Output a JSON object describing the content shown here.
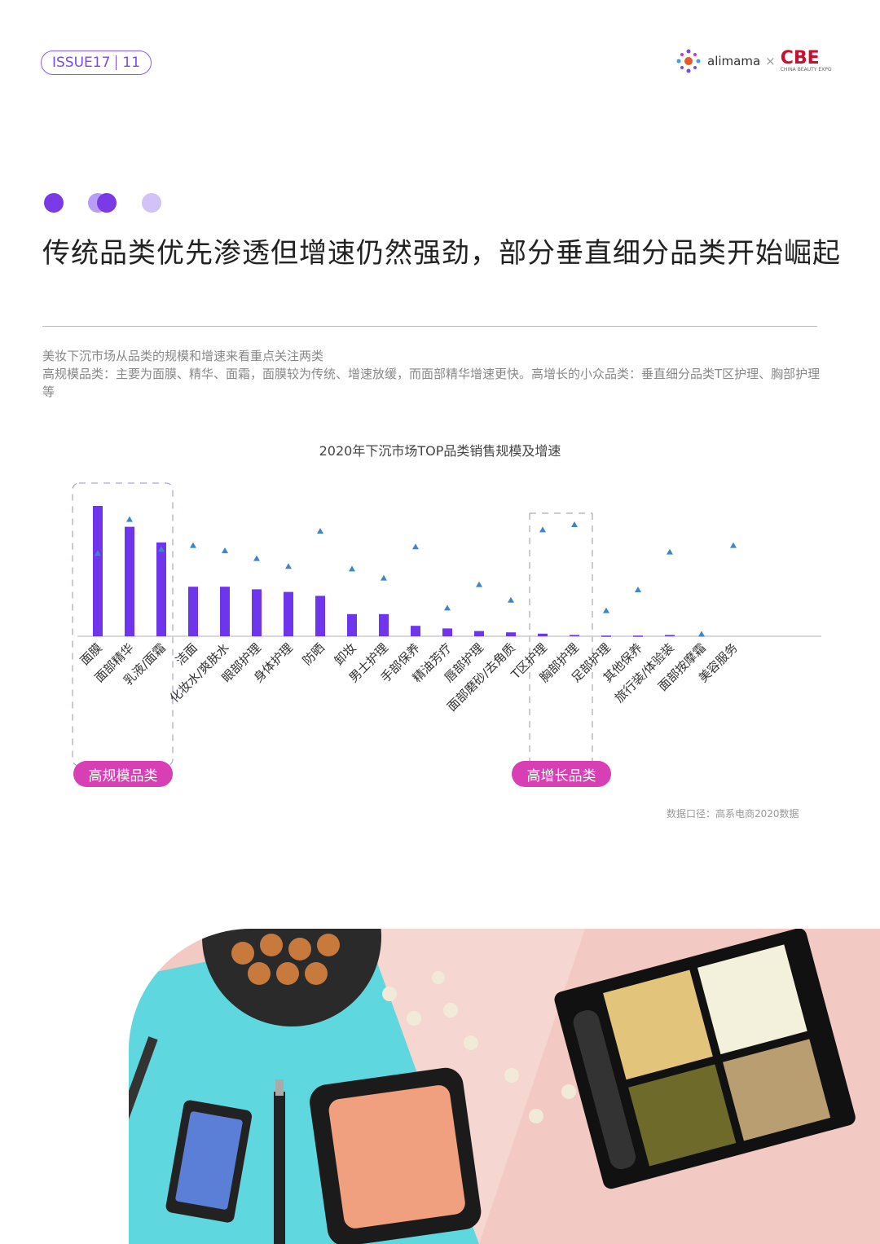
{
  "header": {
    "issue_label": "ISSUE17",
    "page_number": "11",
    "logo_alimama": "alimama",
    "logo_cross": "×",
    "logo_cbe": "CBE",
    "logo_cbe_sub": "CHINA BEAUTY EXPO"
  },
  "title": "传统品类优先渗透但增速仍然强劲，部分垂直细分品类开始崛起",
  "description": [
    "美妆下沉市场从品类的规模和增速来看重点关注两类",
    "高规模品类：主要为面膜、精华、面霜，面膜较为传统、增速放缓，而面部精华增速更快。高增长的小众品类：垂直细分品类T区护理、胸部护理等"
  ],
  "colors": {
    "accent": "#7a4be6",
    "bar": "#6f35ec",
    "marker": "#3f86c8",
    "pill": "#d93fb5"
  },
  "chart_data": {
    "type": "bar",
    "title": "2020年下沉市场TOP品类销售规模及增速",
    "categories": [
      "面膜",
      "面部精华",
      "乳液/面霜",
      "洁面",
      "化妆水/爽肤水",
      "眼部护理",
      "身体护理",
      "防晒",
      "卸妆",
      "男士护理",
      "手部保养",
      "精油芳疗",
      "唇部护理",
      "面部磨砂/去角质",
      "T区护理",
      "胸部护理",
      "足部护理",
      "其他保养",
      "旅行装/体验装",
      "面部按摩霜",
      "美容服务"
    ],
    "series": [
      {
        "mark": "bar",
        "values": [
          100,
          84,
          72,
          38,
          38,
          36,
          34,
          31,
          17,
          17,
          8,
          6,
          4,
          3,
          2,
          1,
          0.5,
          0.5,
          1,
          0,
          0
        ]
      },
      {
        "mark": "triangle",
        "values": [
          63,
          89,
          66,
          69,
          65,
          59,
          53,
          80,
          51,
          44,
          68,
          21,
          39,
          27,
          81,
          85,
          19,
          35,
          64,
          1,
          69
        ]
      }
    ],
    "groups": [
      {
        "label": "高规模品类",
        "categories": [
          "面膜",
          "面部精华",
          "乳液/面霜"
        ]
      },
      {
        "label": "高增长品类",
        "categories": [
          "T区护理",
          "胸部护理"
        ]
      }
    ],
    "axes_visible": false,
    "grid": false,
    "source": "数据口径：高系电商2020数据"
  }
}
